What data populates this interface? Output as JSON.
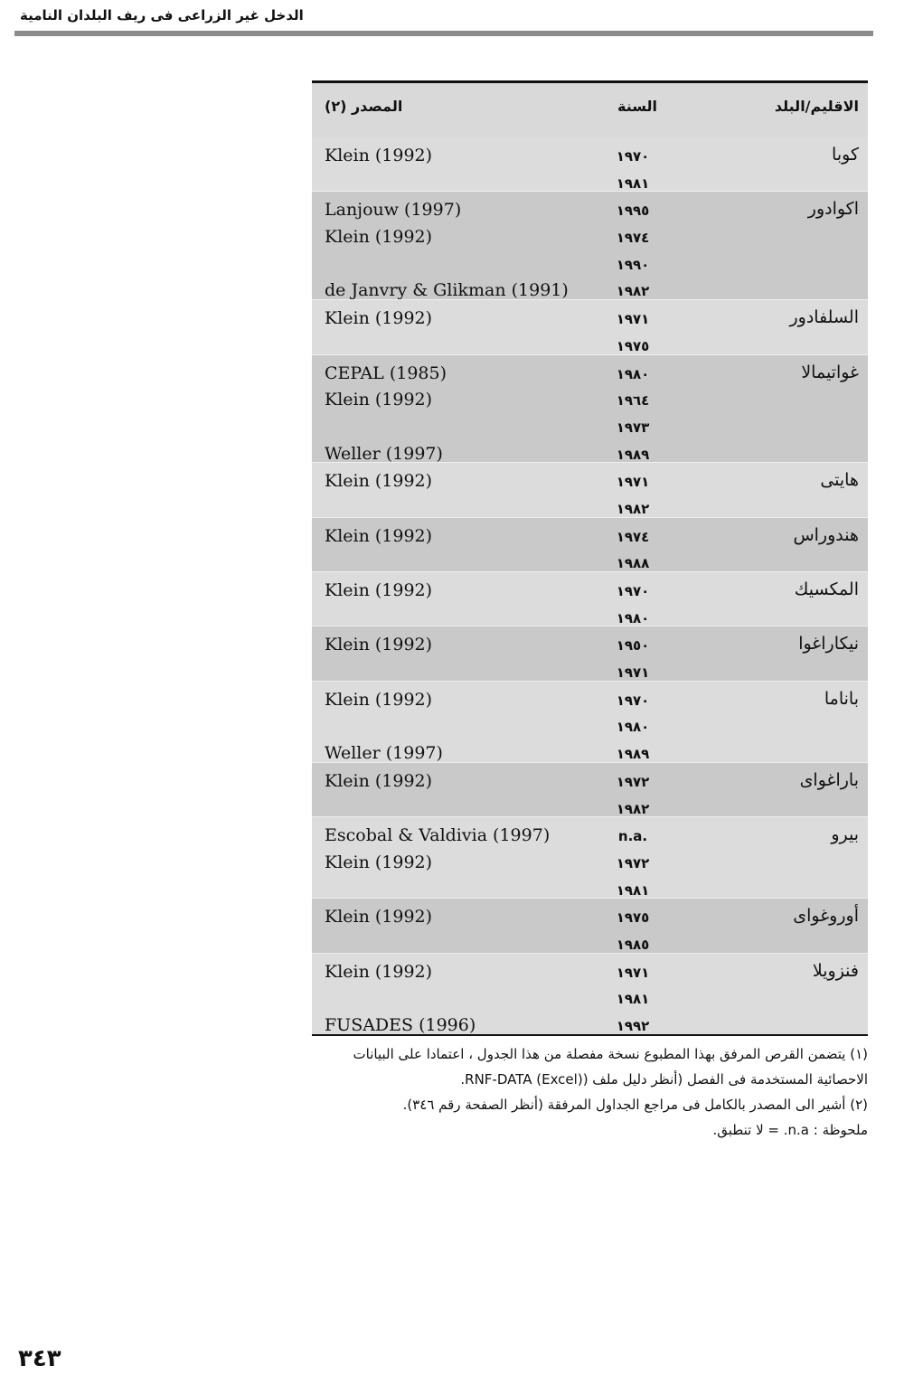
{
  "running_head": "الدخل غير الزراعى فى ريف البلدان النامية",
  "table": {
    "headers": {
      "country": "الاقليم/البلد",
      "year": "السنة",
      "source": "المصدر (٢)"
    },
    "groups": [
      {
        "country": "كوبا",
        "rows": [
          {
            "year": "١٩٧٠",
            "source": "Klein (1992)"
          },
          {
            "year": "١٩٨١",
            "source": ""
          }
        ]
      },
      {
        "country": "اكوادور",
        "rows": [
          {
            "year": "١٩٩٥",
            "source": "Lanjouw (1997)"
          },
          {
            "year": "١٩٧٤",
            "source": "Klein (1992)"
          },
          {
            "year": "١٩٩٠",
            "source": ""
          },
          {
            "year": "١٩٨٢",
            "source": "de Janvry & Glikman (1991)"
          }
        ]
      },
      {
        "country": "السلفادور",
        "rows": [
          {
            "year": "١٩٧١",
            "source": "Klein (1992)"
          },
          {
            "year": "١٩٧٥",
            "source": ""
          }
        ]
      },
      {
        "country": "غواتيمالا",
        "rows": [
          {
            "year": "١٩٨٠",
            "source": "CEPAL (1985)"
          },
          {
            "year": "١٩٦٤",
            "source": "Klein (1992)"
          },
          {
            "year": "١٩٧٣",
            "source": ""
          },
          {
            "year": "١٩٨٩",
            "source": "Weller (1997)"
          }
        ]
      },
      {
        "country": "هايتى",
        "rows": [
          {
            "year": "١٩٧١",
            "source": "Klein (1992)"
          },
          {
            "year": "١٩٨٢",
            "source": ""
          }
        ]
      },
      {
        "country": "هندوراس",
        "rows": [
          {
            "year": "١٩٧٤",
            "source": "Klein (1992)"
          },
          {
            "year": "١٩٨٨",
            "source": ""
          }
        ]
      },
      {
        "country": "المكسيك",
        "rows": [
          {
            "year": "١٩٧٠",
            "source": "Klein (1992)"
          },
          {
            "year": "١٩٨٠",
            "source": ""
          }
        ]
      },
      {
        "country": "نيكاراغوا",
        "rows": [
          {
            "year": "١٩٥٠",
            "source": "Klein (1992)"
          },
          {
            "year": "١٩٧١",
            "source": ""
          }
        ]
      },
      {
        "country": "باناما",
        "rows": [
          {
            "year": "١٩٧٠",
            "source": "Klein (1992)"
          },
          {
            "year": "١٩٨٠",
            "source": ""
          },
          {
            "year": "١٩٨٩",
            "source": "Weller (1997)"
          }
        ]
      },
      {
        "country": "باراغواى",
        "rows": [
          {
            "year": "١٩٧٢",
            "source": "Klein (1992)"
          },
          {
            "year": "١٩٨٢",
            "source": ""
          }
        ]
      },
      {
        "country": "بيرو",
        "rows": [
          {
            "year": "n.a.",
            "source": "Escobal & Valdivia (1997)"
          },
          {
            "year": "١٩٧٢",
            "source": "Klein (1992)"
          },
          {
            "year": "١٩٨١",
            "source": ""
          }
        ]
      },
      {
        "country": "أوروغواى",
        "rows": [
          {
            "year": "١٩٧٥",
            "source": "Klein (1992)"
          },
          {
            "year": "١٩٨٥",
            "source": ""
          }
        ]
      },
      {
        "country": "فنزويلا",
        "rows": [
          {
            "year": "١٩٧١",
            "source": "Klein (1992)"
          },
          {
            "year": "١٩٨١",
            "source": ""
          },
          {
            "year": "١٩٩٢",
            "source": "FUSADES (1996)"
          }
        ]
      }
    ]
  },
  "notes": [
    "(١) يتضمن القرص المرفق بهذا المطبوع نسخة مفصلة من هذا الجدول ، اعتمادا على البيانات الاحصائية المستخدمة فى الفصل (أنظر دليل ملف (RNF-DATA (Excel).",
    "(٢) أشير الى المصدر بالكامل فى مراجع الجداول المرفقة (أنظر الصفحة رقم ٣٤٦).",
    "ملحوظة : n.a. = لا تنطبق."
  ],
  "page_number": "٣٤٣",
  "colors": {
    "band_light": "#dcdcdc",
    "band_dark": "#c9c9c9",
    "rule": "#8c8c8c"
  }
}
